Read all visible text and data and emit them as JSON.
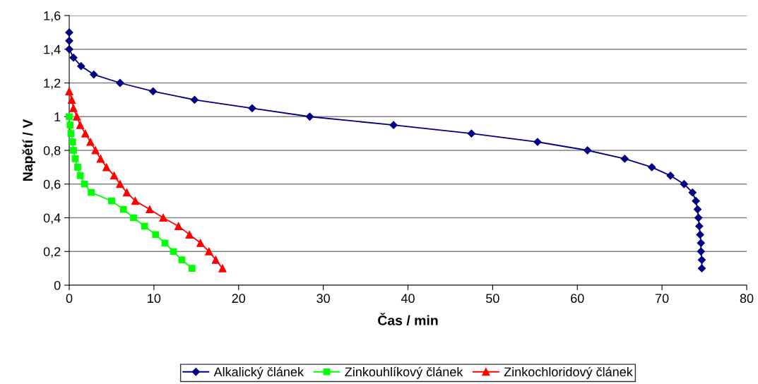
{
  "chart_data": {
    "type": "line",
    "xlabel": "Čas / min",
    "ylabel": "Napětí / V",
    "xlim": [
      0,
      80
    ],
    "xticks": [
      0,
      10,
      20,
      30,
      40,
      50,
      60,
      70,
      80
    ],
    "ylim": [
      0,
      1.6
    ],
    "yticks": [
      0,
      {
        "value": 0.2,
        "label": "0,2"
      },
      {
        "value": 0.4,
        "label": "0,4"
      },
      {
        "value": 0.6,
        "label": "0,6"
      },
      {
        "value": 0.8,
        "label": "0,8"
      },
      1,
      {
        "value": 1.2,
        "label": "1,2"
      },
      {
        "value": 1.4,
        "label": "1,4"
      },
      {
        "value": 1.6,
        "label": "1,6"
      }
    ],
    "grid": "y",
    "legend": "bottom",
    "series": [
      {
        "name": "Alkalický článek",
        "color": "#000080",
        "marker": "diamond",
        "x": [
          0,
          0,
          0,
          0.5,
          1.4,
          2.9,
          6.0,
          9.9,
          14.8,
          21.6,
          28.4,
          38.3,
          47.5,
          55.3,
          61.2,
          65.6,
          68.8,
          71.0,
          72.6,
          73.6,
          74.0,
          74.2,
          74.3,
          74.4,
          74.5,
          74.6,
          74.6,
          74.7,
          74.7
        ],
        "values": [
          1.5,
          1.45,
          1.4,
          1.35,
          1.3,
          1.25,
          1.2,
          1.15,
          1.1,
          1.05,
          1.0,
          0.95,
          0.9,
          0.85,
          0.8,
          0.75,
          0.7,
          0.65,
          0.6,
          0.55,
          0.5,
          0.45,
          0.4,
          0.35,
          0.3,
          0.25,
          0.2,
          0.15,
          0.1
        ]
      },
      {
        "name": "Zinkouhlíkový článek",
        "color": "#00ff00",
        "marker": "square",
        "x": [
          0.0,
          0.1,
          0.2,
          0.4,
          0.5,
          0.7,
          1.0,
          1.3,
          1.8,
          2.6,
          5.0,
          6.4,
          7.6,
          8.9,
          10.2,
          11.3,
          12.3,
          13.3,
          14.5
        ],
        "values": [
          1.0,
          0.95,
          0.9,
          0.85,
          0.8,
          0.75,
          0.7,
          0.65,
          0.6,
          0.55,
          0.5,
          0.45,
          0.4,
          0.35,
          0.3,
          0.25,
          0.2,
          0.15,
          0.1
        ]
      },
      {
        "name": "Zinkochloridový článek",
        "color": "#ff0000",
        "marker": "triangle",
        "x": [
          0.0,
          0.3,
          0.5,
          0.9,
          1.3,
          1.9,
          2.5,
          3.1,
          3.7,
          4.4,
          5.3,
          6.0,
          6.8,
          7.8,
          9.5,
          11.1,
          12.9,
          14.2,
          15.5,
          16.5,
          17.3,
          18.1
        ],
        "values": [
          1.15,
          1.1,
          1.05,
          1.0,
          0.95,
          0.9,
          0.85,
          0.8,
          0.75,
          0.7,
          0.65,
          0.6,
          0.55,
          0.5,
          0.45,
          0.4,
          0.35,
          0.3,
          0.25,
          0.2,
          0.15,
          0.1
        ]
      }
    ]
  }
}
